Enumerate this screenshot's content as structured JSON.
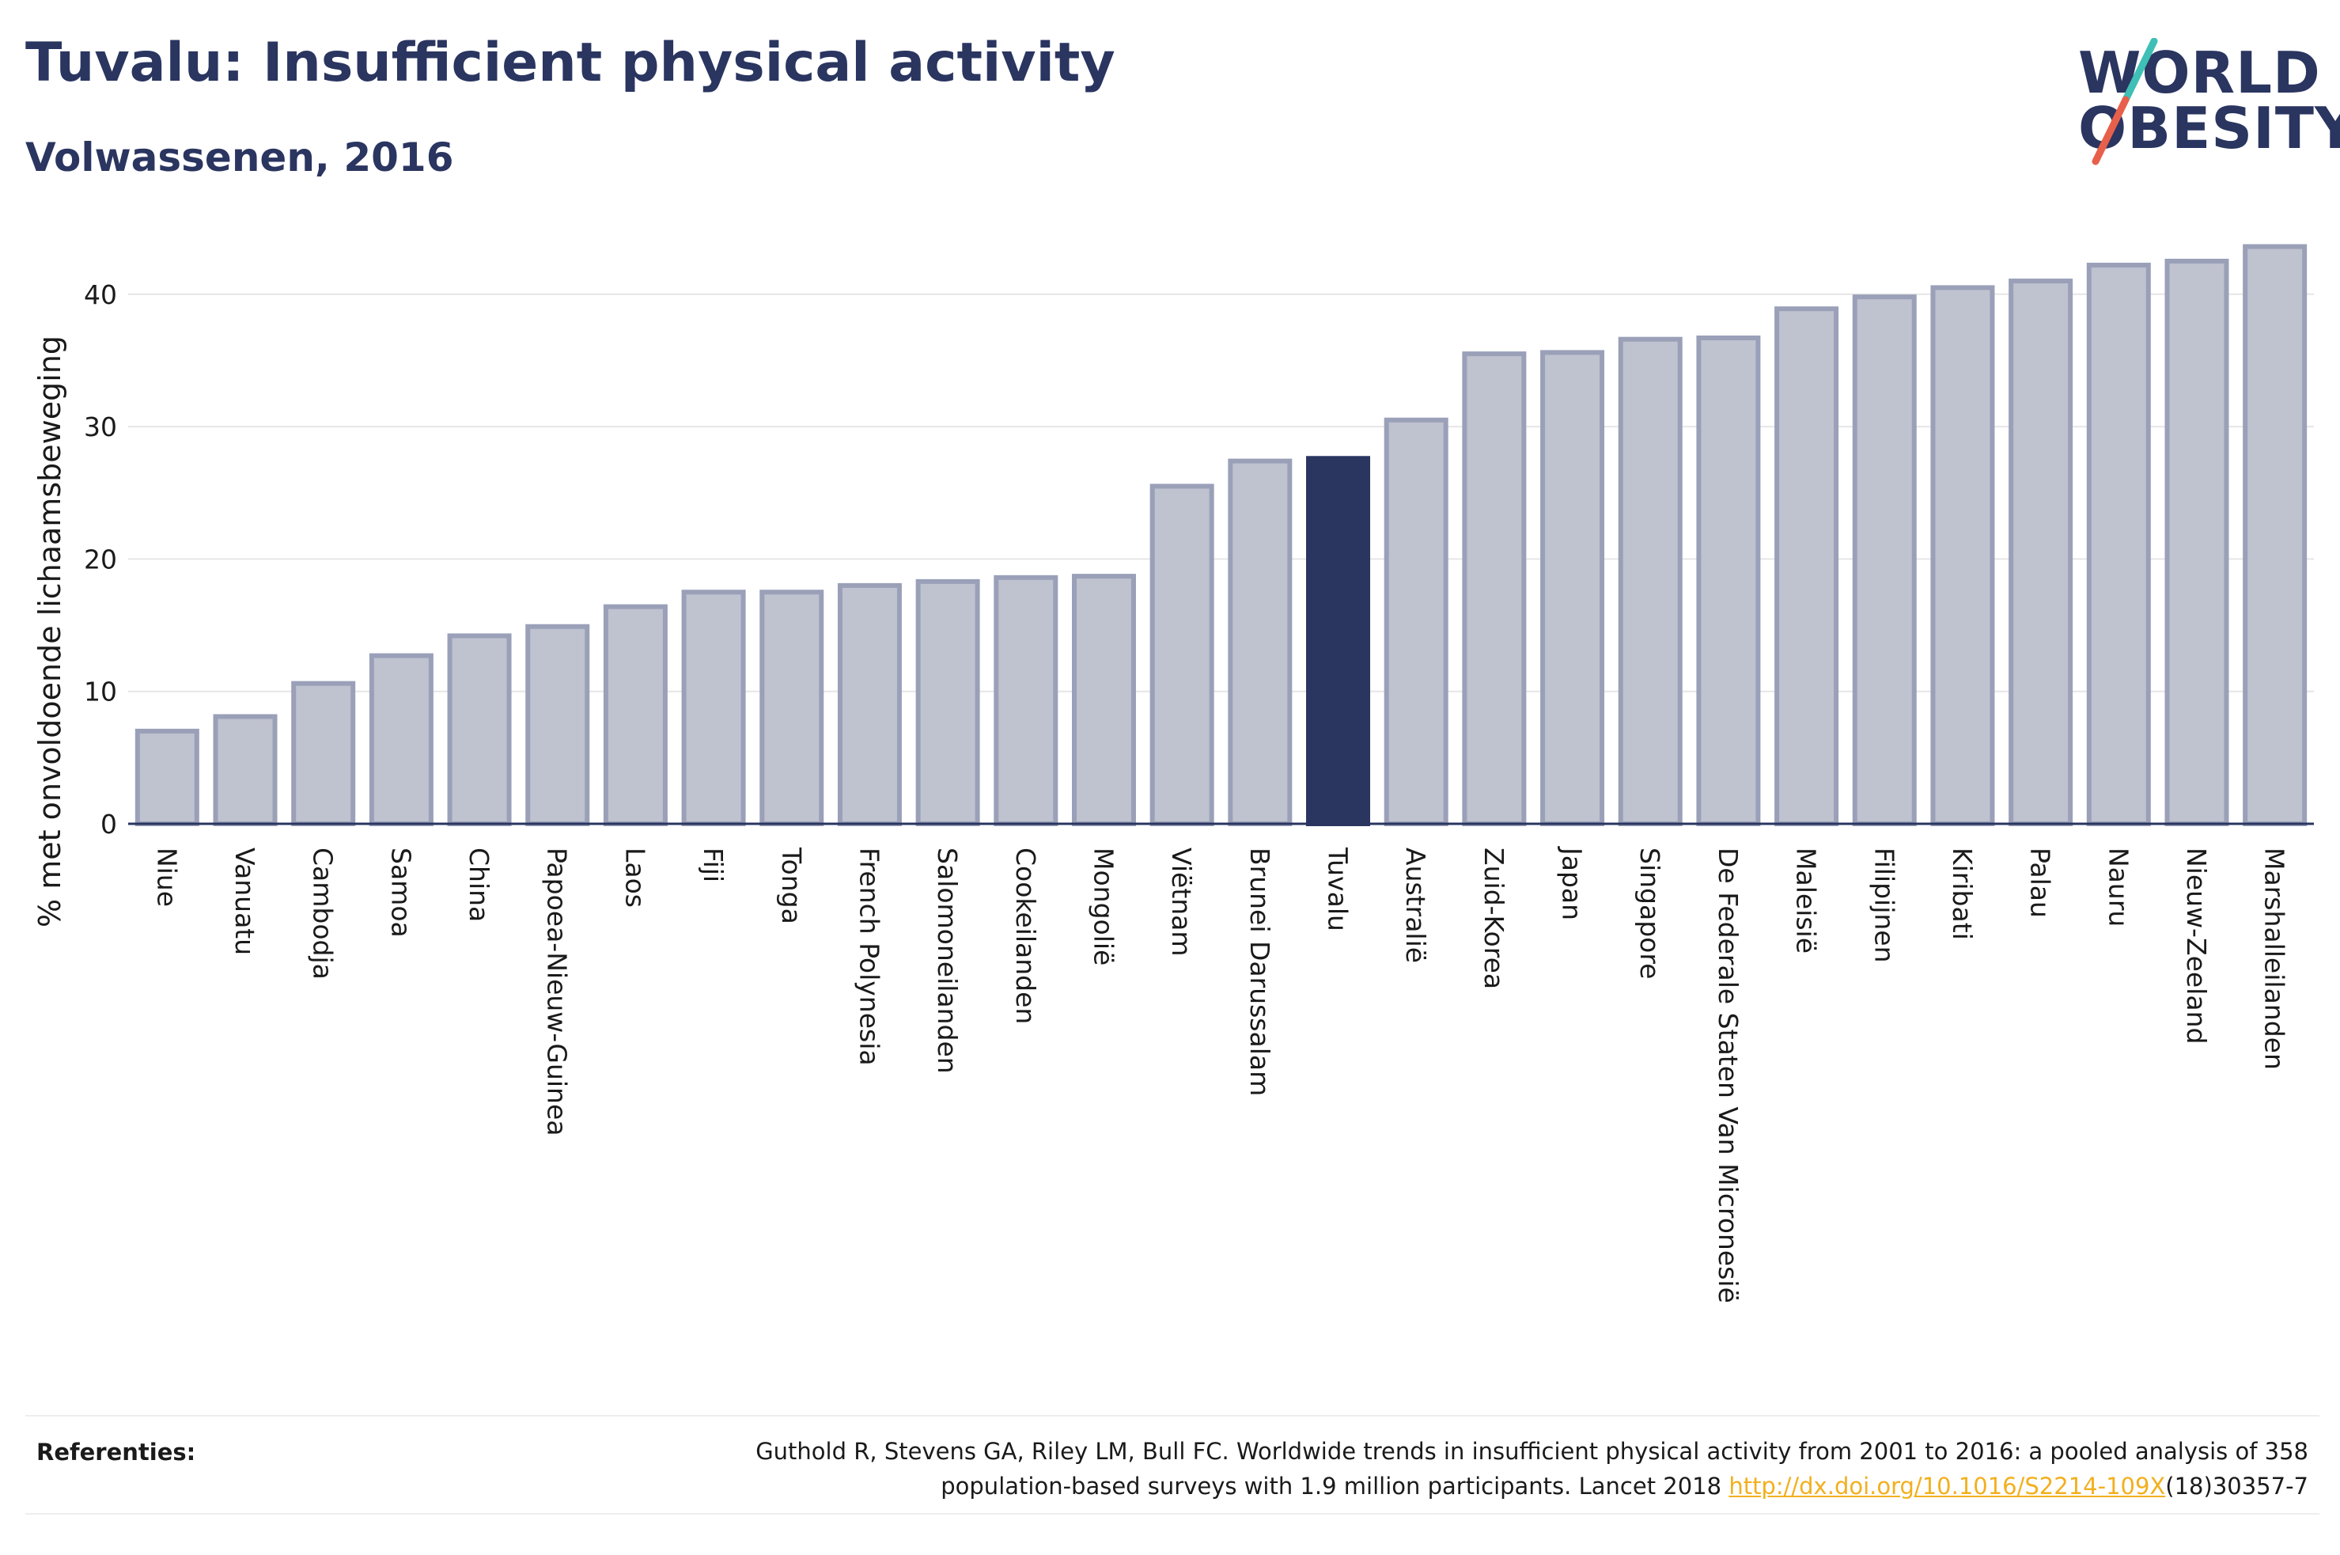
{
  "header": {
    "title": "Tuvalu: Insufficient physical activity",
    "subtitle": "Volwassenen, 2016"
  },
  "logo": {
    "line1": "WORLD",
    "line2": "OBESITY"
  },
  "references": {
    "label": "Referenties:",
    "text_line1": "Guthold R, Stevens GA, Riley LM, Bull FC. Worldwide trends in insufficient physical activity from 2001 to 2016: a pooled analysis of 358",
    "text_line2_before": "population-based surveys with 1.9 million participants. Lancet 2018 ",
    "link": "http://dx.doi.org/10.1016/S2214-109X",
    "text_line2_after": "(18)30357-7"
  },
  "colors": {
    "title": "#2a3560",
    "bar_fill": "#bfc2cf",
    "bar_stroke": "#9aa0b8",
    "highlight": "#2a3560",
    "logo_accent_teal": "#3fbfb5",
    "logo_accent_red": "#e8604c",
    "link": "#f2b01e"
  },
  "chart_data": {
    "type": "bar",
    "title": "Tuvalu: Insufficient physical activity",
    "subtitle": "Volwassenen, 2016",
    "xlabel": "",
    "ylabel": "% met onvoldoende lichaamsbeweging",
    "ylim": [
      0,
      45
    ],
    "yticks": [
      0,
      10,
      20,
      30,
      40
    ],
    "grid": true,
    "highlight": "Tuvalu",
    "categories": [
      "Niue",
      "Vanuatu",
      "Cambodja",
      "Samoa",
      "China",
      "Papoea-Nieuw-Guinea",
      "Laos",
      "Fiji",
      "Tonga",
      "French Polynesia",
      "Salomoneilanden",
      "Cookeilanden",
      "Mongolië",
      "Viëtnam",
      "Brunei Darussalam",
      "Tuvalu",
      "Australië",
      "Zuid-Korea",
      "Japan",
      "Singapore",
      "De Federale Staten Van Micronesië",
      "Maleisië",
      "Filipijnen",
      "Kiribati",
      "Palau",
      "Nauru",
      "Nieuw-Zeeland",
      "Marshalleilanden"
    ],
    "values": [
      7.0,
      8.1,
      10.6,
      12.7,
      14.2,
      14.9,
      16.4,
      17.5,
      17.5,
      18.0,
      18.3,
      18.6,
      18.7,
      25.5,
      27.4,
      27.6,
      30.5,
      35.5,
      35.6,
      36.6,
      36.7,
      38.9,
      39.8,
      40.5,
      41.0,
      42.2,
      42.5,
      43.6
    ]
  }
}
